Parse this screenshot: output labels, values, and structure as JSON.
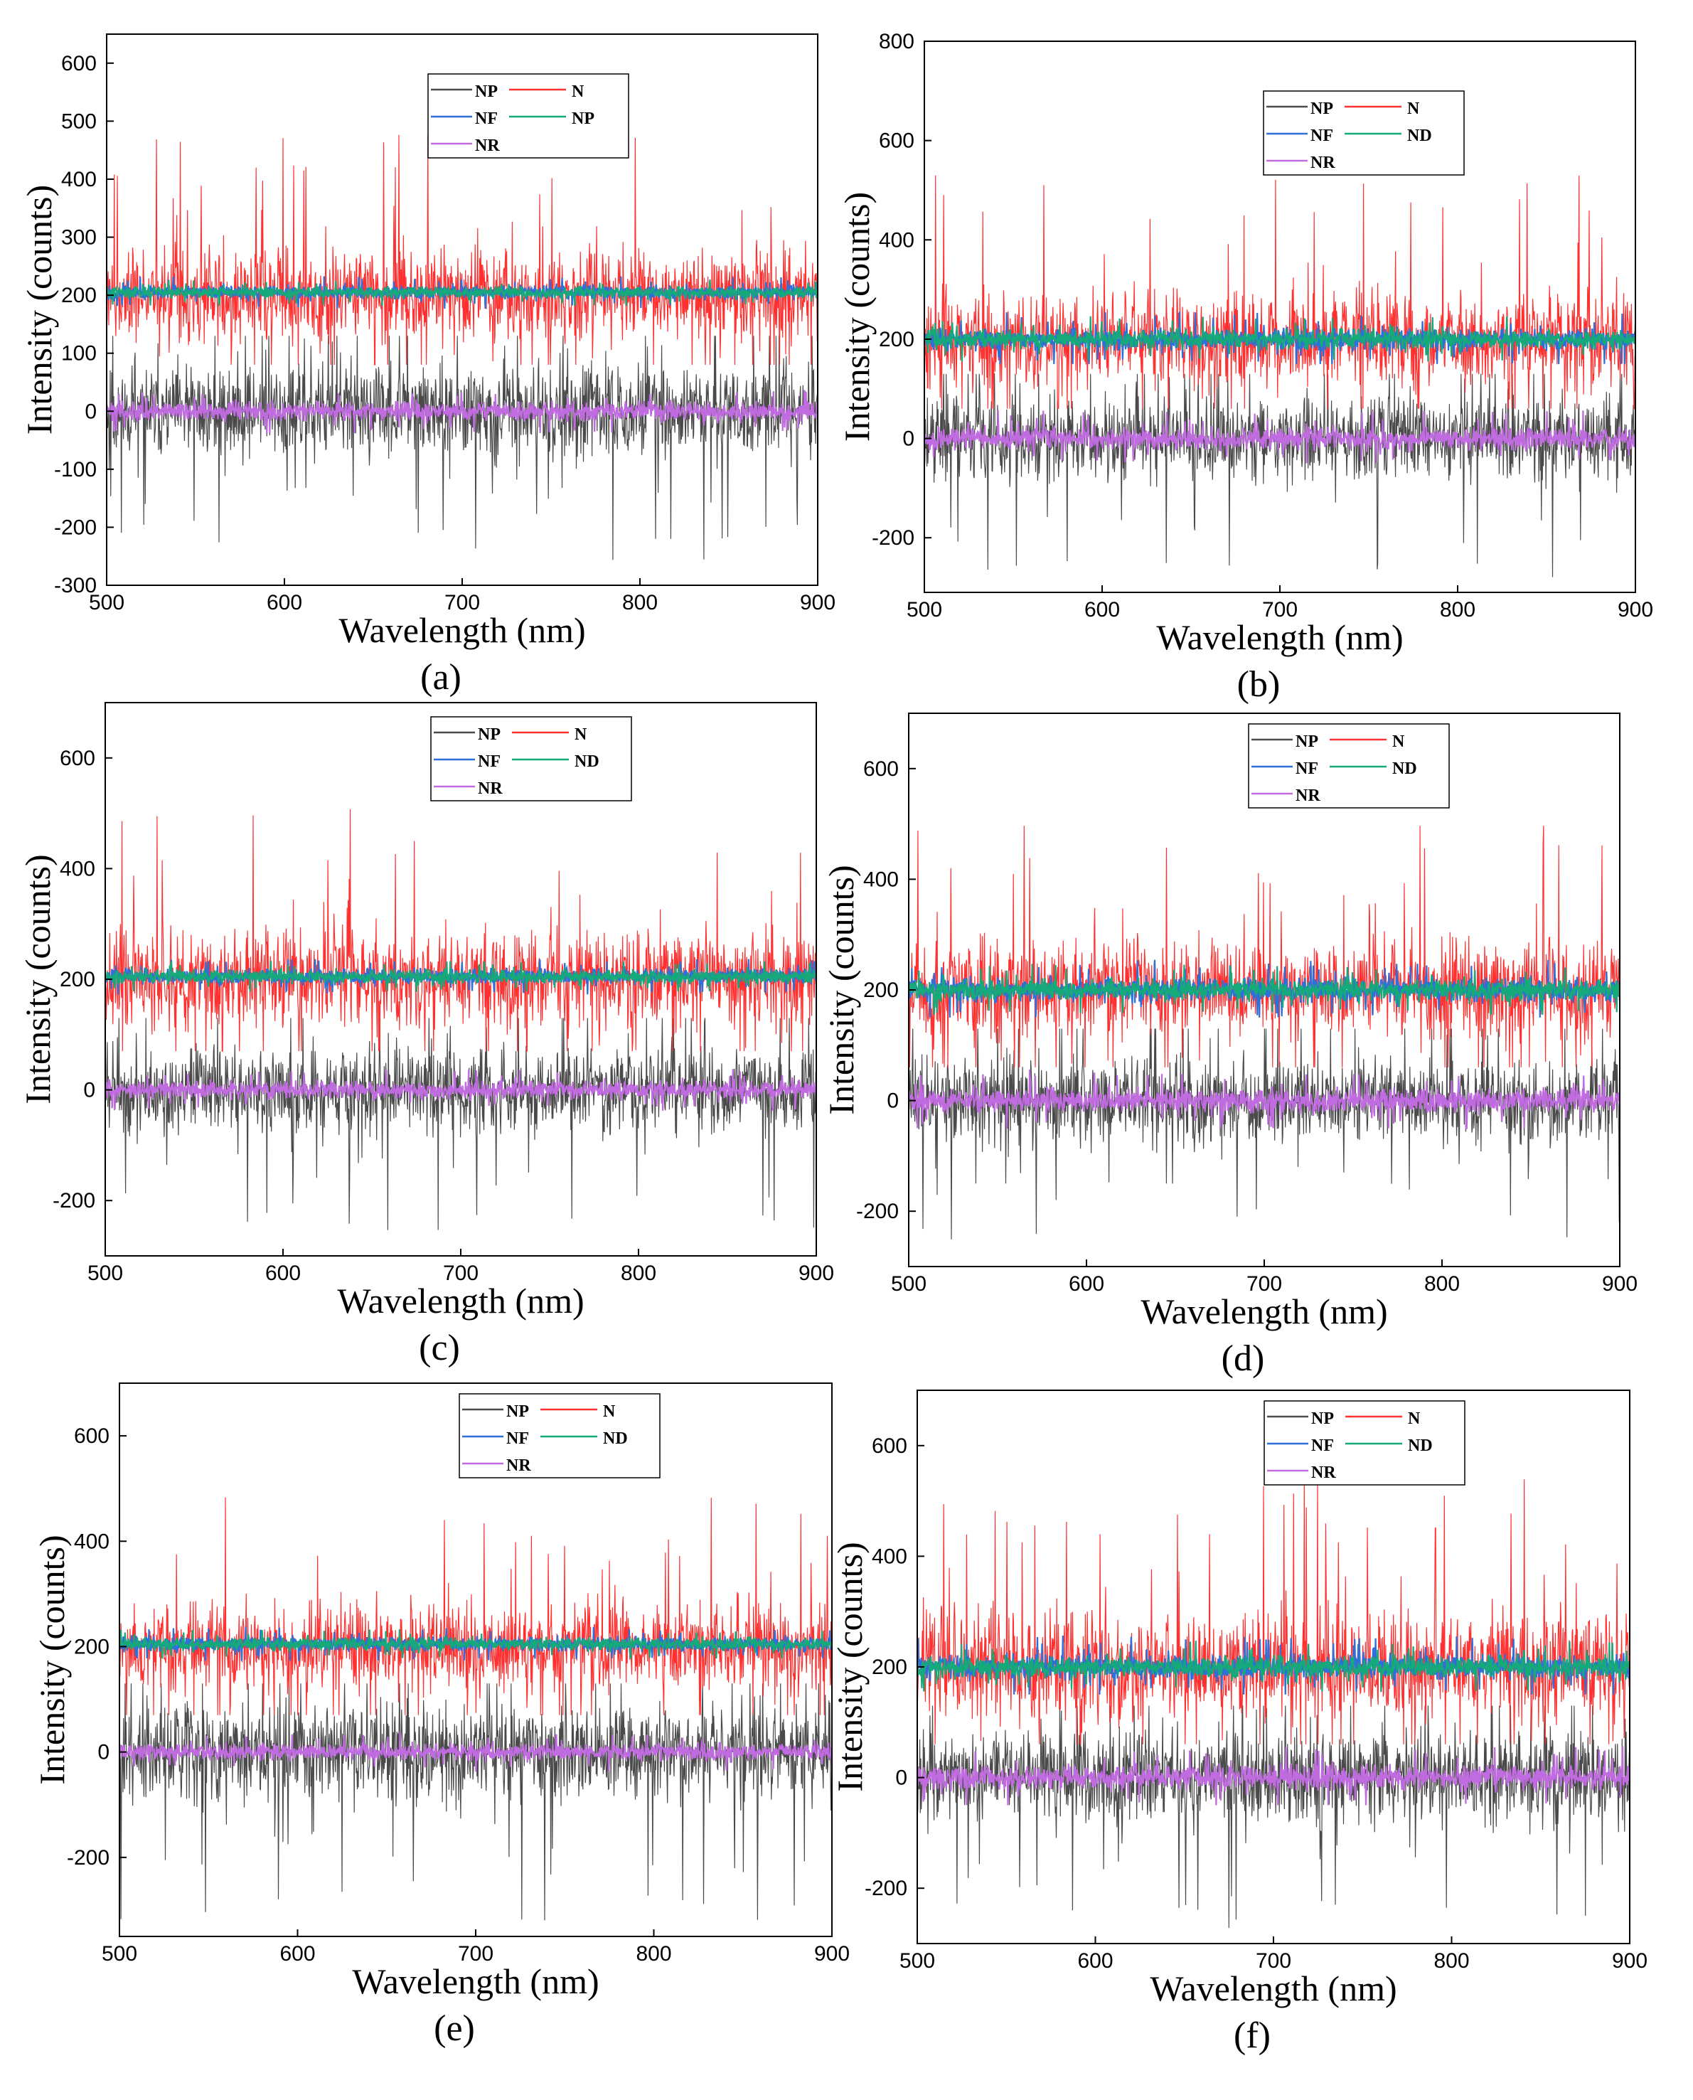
{
  "colors": {
    "NP": "#4a4a4a",
    "N": "#ff3030",
    "NF": "#2f6fd8",
    "ND": "#16a97a",
    "NR": "#c06be0"
  },
  "chart_data": [
    {
      "type": "line",
      "panel_label": "(a)",
      "xlabel": "Wavelength (nm)",
      "ylabel": "Intensity (counts)",
      "xlim": [
        500,
        900
      ],
      "ylim": [
        -300,
        650
      ],
      "xticks": [
        500,
        600,
        700,
        800,
        900
      ],
      "yticks": [
        -300,
        -200,
        -100,
        0,
        100,
        200,
        300,
        400,
        500,
        600
      ],
      "grid": false,
      "legend_position": "top-center",
      "legend": [
        "NP",
        "N",
        "NF",
        "NP",
        "NR"
      ],
      "series": [
        {
          "name": "NP",
          "key": "NP",
          "mean": 0,
          "noise_range": [
            -270,
            130
          ]
        },
        {
          "name": "N",
          "key": "N",
          "mean": 200,
          "noise_range": [
            80,
            495
          ]
        },
        {
          "name": "NF",
          "key": "NF",
          "mean": 205,
          "noise_range": [
            175,
            235
          ]
        },
        {
          "name": "NP",
          "key": "ND",
          "mean": 205,
          "noise_range": [
            180,
            230
          ]
        },
        {
          "name": "NR",
          "key": "NR",
          "mean": 0,
          "noise_range": [
            -40,
            40
          ]
        }
      ]
    },
    {
      "type": "line",
      "panel_label": "(b)",
      "xlabel": "Wavelength (nm)",
      "ylabel": "Intensity (counts)",
      "xlim": [
        500,
        900
      ],
      "ylim": [
        -310,
        800
      ],
      "xticks": [
        500,
        600,
        700,
        800,
        900
      ],
      "yticks": [
        -200,
        0,
        200,
        400,
        600,
        800
      ],
      "grid": false,
      "legend_position": "top-right",
      "legend": [
        "NP",
        "N",
        "NF",
        "ND",
        "NR"
      ],
      "series": [
        {
          "name": "NP",
          "key": "NP",
          "mean": 0,
          "noise_range": [
            -300,
            130
          ]
        },
        {
          "name": "N",
          "key": "N",
          "mean": 200,
          "noise_range": [
            60,
            550
          ]
        },
        {
          "name": "NF",
          "key": "NF",
          "mean": 200,
          "noise_range": [
            150,
            260
          ]
        },
        {
          "name": "ND",
          "key": "ND",
          "mean": 200,
          "noise_range": [
            155,
            250
          ]
        },
        {
          "name": "NR",
          "key": "NR",
          "mean": 0,
          "noise_range": [
            -50,
            60
          ]
        }
      ]
    },
    {
      "type": "line",
      "panel_label": "(c)",
      "xlabel": "Wavelength (nm)",
      "ylabel": "Intensity (counts)",
      "xlim": [
        500,
        900
      ],
      "ylim": [
        -300,
        700
      ],
      "xticks": [
        500,
        600,
        700,
        800,
        900
      ],
      "yticks": [
        -200,
        0,
        200,
        400,
        600
      ],
      "grid": false,
      "legend_position": "top-center",
      "legend": [
        "NP",
        "N",
        "NF",
        "ND",
        "NR"
      ],
      "series": [
        {
          "name": "NP",
          "key": "NP",
          "mean": 0,
          "noise_range": [
            -270,
            130
          ]
        },
        {
          "name": "N",
          "key": "N",
          "mean": 200,
          "noise_range": [
            70,
            525
          ]
        },
        {
          "name": "NF",
          "key": "NF",
          "mean": 205,
          "noise_range": [
            170,
            240
          ]
        },
        {
          "name": "ND",
          "key": "ND",
          "mean": 205,
          "noise_range": [
            175,
            235
          ]
        },
        {
          "name": "NR",
          "key": "NR",
          "mean": 0,
          "noise_range": [
            -40,
            40
          ]
        }
      ]
    },
    {
      "type": "line",
      "panel_label": "(d)",
      "xlabel": "Wavelength (nm)",
      "ylabel": "Intensity (counts)",
      "xlim": [
        500,
        900
      ],
      "ylim": [
        -300,
        700
      ],
      "xticks": [
        500,
        600,
        700,
        800,
        900
      ],
      "yticks": [
        -200,
        0,
        200,
        400,
        600
      ],
      "grid": false,
      "legend_position": "top-right",
      "legend": [
        "NP",
        "N",
        "NF",
        "ND",
        "NR"
      ],
      "series": [
        {
          "name": "NP",
          "key": "NP",
          "mean": 0,
          "noise_range": [
            -270,
            130
          ]
        },
        {
          "name": "N",
          "key": "N",
          "mean": 200,
          "noise_range": [
            60,
            520
          ]
        },
        {
          "name": "NF",
          "key": "NF",
          "mean": 200,
          "noise_range": [
            150,
            260
          ]
        },
        {
          "name": "ND",
          "key": "ND",
          "mean": 200,
          "noise_range": [
            155,
            250
          ]
        },
        {
          "name": "NR",
          "key": "NR",
          "mean": 0,
          "noise_range": [
            -50,
            60
          ]
        }
      ]
    },
    {
      "type": "line",
      "panel_label": "(e)",
      "xlabel": "Wavelength (nm)",
      "ylabel": "Intensity (counts)",
      "xlim": [
        500,
        900
      ],
      "ylim": [
        -350,
        700
      ],
      "xticks": [
        500,
        600,
        700,
        800,
        900
      ],
      "yticks": [
        -200,
        0,
        200,
        400,
        600
      ],
      "grid": false,
      "legend_position": "top-right",
      "legend": [
        "NP",
        "N",
        "NF",
        "ND",
        "NR"
      ],
      "series": [
        {
          "name": "NP",
          "key": "NP",
          "mean": 0,
          "noise_range": [
            -340,
            130
          ]
        },
        {
          "name": "N",
          "key": "N",
          "mean": 200,
          "noise_range": [
            70,
            500
          ]
        },
        {
          "name": "NF",
          "key": "NF",
          "mean": 205,
          "noise_range": [
            170,
            240
          ]
        },
        {
          "name": "ND",
          "key": "ND",
          "mean": 205,
          "noise_range": [
            175,
            235
          ]
        },
        {
          "name": "NR",
          "key": "NR",
          "mean": 0,
          "noise_range": [
            -40,
            40
          ]
        }
      ]
    },
    {
      "type": "line",
      "panel_label": "(f)",
      "xlabel": "Wavelength (nm)",
      "ylabel": "Intensity (counts)",
      "xlim": [
        500,
        900
      ],
      "ylim": [
        -300,
        700
      ],
      "xticks": [
        500,
        600,
        700,
        800,
        900
      ],
      "yticks": [
        -200,
        0,
        200,
        400,
        600
      ],
      "grid": false,
      "legend_position": "top-right",
      "legend": [
        "NP",
        "N",
        "NF",
        "ND",
        "NR"
      ],
      "series": [
        {
          "name": "NP",
          "key": "NP",
          "mean": 0,
          "noise_range": [
            -300,
            130
          ]
        },
        {
          "name": "N",
          "key": "N",
          "mean": 200,
          "noise_range": [
            60,
            570
          ]
        },
        {
          "name": "NF",
          "key": "NF",
          "mean": 200,
          "noise_range": [
            150,
            260
          ]
        },
        {
          "name": "ND",
          "key": "ND",
          "mean": 200,
          "noise_range": [
            155,
            250
          ]
        },
        {
          "name": "NR",
          "key": "NR",
          "mean": 0,
          "noise_range": [
            -50,
            60
          ]
        }
      ]
    }
  ]
}
